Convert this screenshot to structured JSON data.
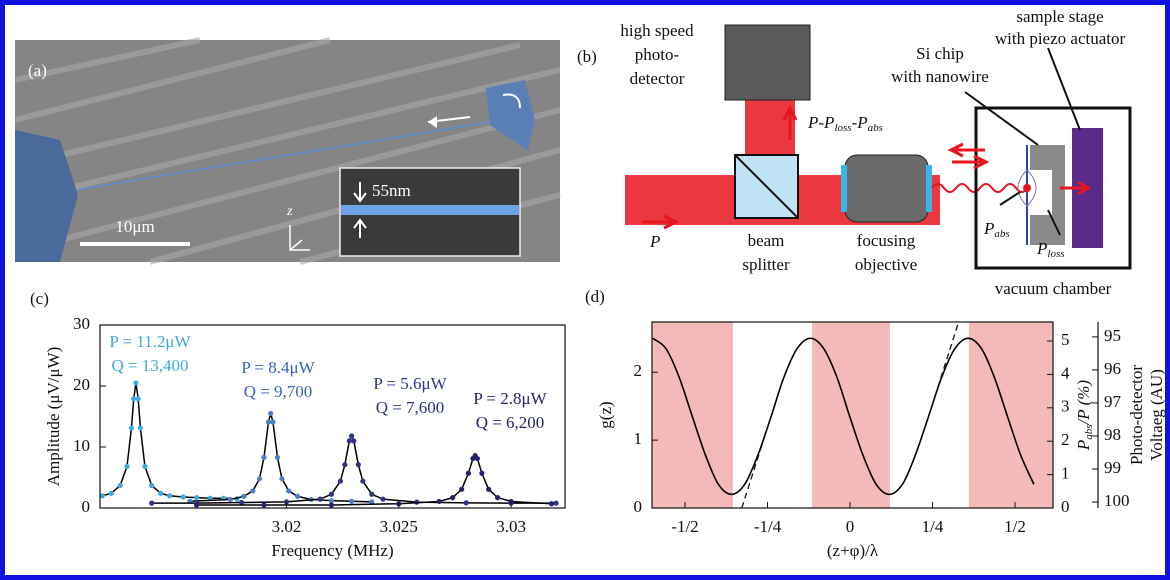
{
  "figure": {
    "a": {
      "label": "(a)",
      "scale_bar": "10μm",
      "inset_scale": "55nm",
      "axis": "z"
    },
    "b": {
      "label": "(b)",
      "detector": [
        "high speed",
        "photo-",
        "detector"
      ],
      "chip": [
        "Si chip",
        "with nanowire"
      ],
      "stage": [
        "sample stage",
        "with piezo actuator"
      ],
      "reflected": [
        "P-P",
        "loss",
        "-P",
        "abs"
      ],
      "incident": "P",
      "splitter": [
        "beam",
        "splitter"
      ],
      "objective": [
        "focusing",
        "objective"
      ],
      "chamber": "vacuum chamber",
      "p_abs": [
        "P",
        "abs"
      ],
      "p_loss": [
        "P",
        "loss"
      ]
    }
  },
  "chart_data": [
    {
      "type": "scatter",
      "panel_label": "(c)",
      "xlabel": "Frequency (MHz)",
      "ylabel": "Amplitude (μV/μW)",
      "xlim": [
        3.0117,
        3.0324
      ],
      "xticks": [
        3.02,
        3.025,
        3.03
      ],
      "ylim": [
        0,
        30
      ],
      "yticks": [
        0,
        10,
        20,
        30
      ],
      "fit_color": "#000000",
      "annotations": [
        {
          "text": "P = 11.2μW",
          "color": "#3fa9dc"
        },
        {
          "text": "Q = 13,400",
          "color": "#3fa9dc"
        },
        {
          "text": "P = 8.4μW",
          "color": "#3d63b8"
        },
        {
          "text": "Q = 9,700",
          "color": "#3d63b8"
        },
        {
          "text": "P = 5.6μW",
          "color": "#2e3585"
        },
        {
          "text": "Q = 7,600",
          "color": "#2e3585"
        },
        {
          "text": "P = 2.8μW",
          "color": "#26236e"
        },
        {
          "text": "Q = 6,200",
          "color": "#26236e"
        }
      ],
      "series": [
        {
          "color": "#3fa9dc",
          "x": [
            3.0118,
            3.0122,
            3.0126,
            3.0129,
            3.0131,
            3.0132,
            3.0133,
            3.0134,
            3.0135,
            3.0137,
            3.014,
            3.0144,
            3.0148,
            3.0154,
            3.016,
            3.0166,
            3.0172,
            3.0178
          ],
          "values": [
            2.0,
            2.4,
            3.7,
            6.8,
            13.1,
            17.9,
            20.5,
            17.9,
            13.1,
            6.8,
            3.7,
            2.4,
            2.0,
            1.8,
            1.7,
            1.6,
            1.6,
            1.5
          ]
        },
        {
          "color": "#4f7fcc",
          "x": [
            3.0157,
            3.0175,
            3.0181,
            3.0185,
            3.0188,
            3.019,
            3.0192,
            3.0193,
            3.0194,
            3.0196,
            3.0198,
            3.0201,
            3.0205,
            3.0211,
            3.022,
            3.0229,
            3.0238
          ],
          "values": [
            1.1,
            1.4,
            1.9,
            2.8,
            4.8,
            8.3,
            14.1,
            15.5,
            14.1,
            8.3,
            4.8,
            2.8,
            1.9,
            1.4,
            1.2,
            1.1,
            1.0
          ]
        },
        {
          "color": "#2e3585",
          "x": [
            3.014,
            3.016,
            3.018,
            3.02,
            3.0215,
            3.022,
            3.0224,
            3.0226,
            3.0228,
            3.0229,
            3.023,
            3.0232,
            3.0234,
            3.0238,
            3.0243,
            3.0258,
            3.028,
            3.03,
            3.032
          ],
          "values": [
            0.8,
            0.8,
            0.9,
            1.0,
            1.45,
            2.25,
            4.4,
            7.1,
            11.0,
            11.8,
            11.0,
            7.1,
            4.4,
            2.25,
            1.45,
            0.96,
            0.85,
            0.8,
            0.8
          ]
        },
        {
          "color": "#26236e",
          "x": [
            3.016,
            3.019,
            3.022,
            3.025,
            3.0268,
            3.0274,
            3.0278,
            3.0281,
            3.0283,
            3.0284,
            3.0285,
            3.0287,
            3.029,
            3.0294,
            3.03,
            3.0318
          ],
          "values": [
            0.5,
            0.5,
            0.5,
            0.7,
            1.07,
            1.7,
            3.06,
            5.7,
            8.1,
            8.6,
            8.1,
            5.7,
            3.06,
            1.7,
            1.07,
            0.7
          ]
        }
      ]
    },
    {
      "type": "line",
      "panel_label": "(d)",
      "xlabel": "(z+φ)/λ",
      "ylabel": "g(z)",
      "y2label": [
        "P",
        "abs",
        "/P (%)"
      ],
      "y3label": [
        "Photo-detector",
        "Voltaeg (AU)"
      ],
      "xlim": [
        -0.6,
        0.615
      ],
      "xticks": [
        {
          "value": -0.5,
          "label": "-1/2"
        },
        {
          "value": -0.25,
          "label": "-1/4"
        },
        0,
        {
          "value": 0.25,
          "label": "1/4"
        },
        {
          "value": 0.5,
          "label": "1/2"
        }
      ],
      "ylim": [
        0,
        2.74
      ],
      "yticks": [
        0,
        1,
        2
      ],
      "y2lim": [
        0,
        5.57
      ],
      "y2ticks": [
        0,
        1,
        2,
        3,
        4,
        5
      ],
      "y3lim": [
        100.18,
        94.55
      ],
      "y3ticks": [
        95,
        96,
        97,
        98,
        99,
        100
      ],
      "shade_color": "#f4b9b9",
      "shaded_regions": [
        [
          -0.6,
          -0.355
        ],
        [
          -0.115,
          0.121
        ],
        [
          0.36,
          0.615
        ]
      ],
      "series": [
        {
          "color": "#000000",
          "x": [
            -0.598,
            -0.558,
            -0.518,
            -0.478,
            -0.438,
            -0.399,
            -0.359,
            -0.319,
            -0.279,
            -0.239,
            -0.2,
            -0.16,
            -0.12,
            -0.08,
            -0.04,
            -0.001,
            0.039,
            0.079,
            0.119,
            0.159,
            0.198,
            0.238,
            0.278,
            0.318,
            0.358,
            0.398,
            0.437,
            0.477,
            0.517,
            0.557
          ],
          "values": [
            2.5,
            2.35,
            1.93,
            1.35,
            0.78,
            0.35,
            0.2,
            0.35,
            0.78,
            1.35,
            1.93,
            2.35,
            2.5,
            2.35,
            1.93,
            1.35,
            0.78,
            0.35,
            0.2,
            0.35,
            0.78,
            1.35,
            1.93,
            2.35,
            2.5,
            2.35,
            1.93,
            1.35,
            0.78,
            0.35
          ]
        }
      ],
      "dashed_lines": [
        {
          "x": [
            -0.328,
            -0.239
          ],
          "values": [
            0,
            1.35
          ]
        },
        {
          "x": [
            0.238,
            0.329
          ],
          "values": [
            1.35,
            2.74
          ]
        }
      ]
    }
  ]
}
